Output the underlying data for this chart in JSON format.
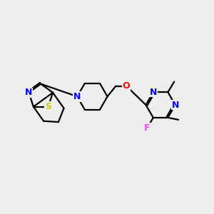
{
  "background_color": "#eeeeee",
  "bond_color": "#000000",
  "atom_colors": {
    "N": "#0000ff",
    "S": "#cccc00",
    "O": "#ff0000",
    "F": "#ff44ff",
    "C": "#000000"
  },
  "font_size": 9,
  "linewidth": 1.6
}
